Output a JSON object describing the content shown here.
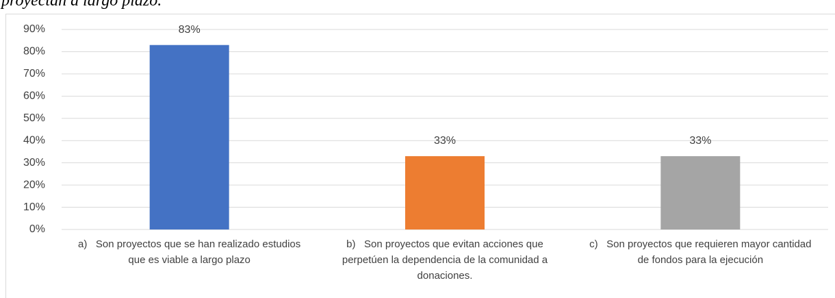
{
  "title_fragment": "proyectan a largo plazo.",
  "chart_data": {
    "type": "bar",
    "categories": [
      "a)   Son proyectos que se han realizado estudios que es viable a largo plazo",
      "b)   Son proyectos que evitan acciones que perpetúen la dependencia de la comunidad a donaciones.",
      "c)   Son proyectos que requieren mayor cantidad de fondos para la ejecución"
    ],
    "values": [
      83,
      33,
      33
    ],
    "value_labels": [
      "83%",
      "33%",
      "33%"
    ],
    "colors": [
      "#4472c4",
      "#ed7d31",
      "#a5a5a5"
    ],
    "ylim": [
      0,
      90
    ],
    "yticks": [
      {
        "value": 0,
        "label": "0%"
      },
      {
        "value": 10,
        "label": "10%"
      },
      {
        "value": 20,
        "label": "20%"
      },
      {
        "value": 30,
        "label": "30%"
      },
      {
        "value": 40,
        "label": "40%"
      },
      {
        "value": 50,
        "label": "50%"
      },
      {
        "value": 60,
        "label": "60%"
      },
      {
        "value": 70,
        "label": "70%"
      },
      {
        "value": 80,
        "label": "80%"
      },
      {
        "value": 90,
        "label": "90%"
      }
    ],
    "grid": true
  }
}
